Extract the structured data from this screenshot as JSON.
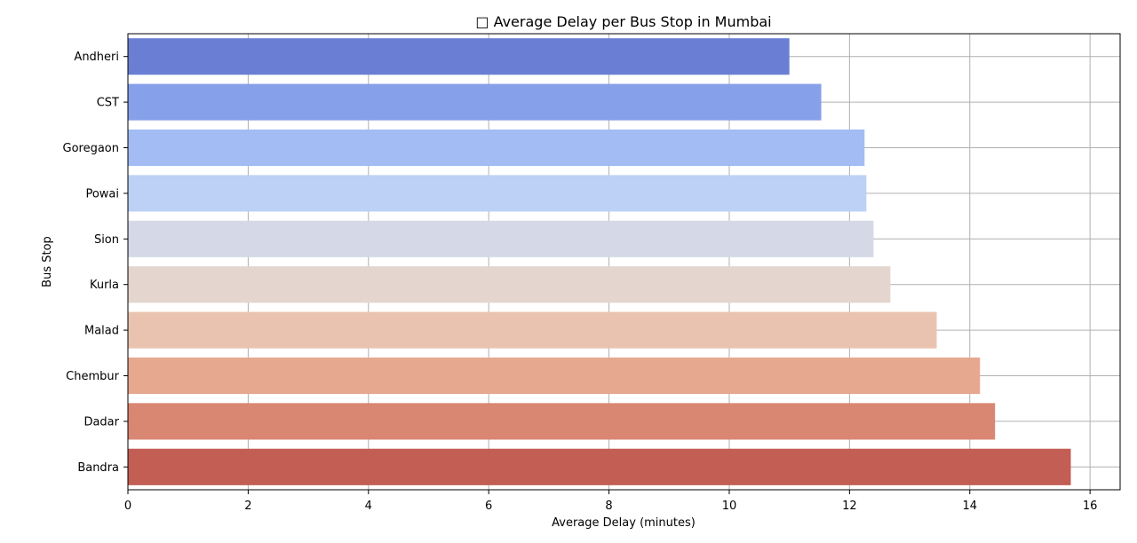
{
  "chart_data": {
    "type": "bar",
    "orientation": "horizontal",
    "title": "□ Average Delay per Bus Stop in Mumbai",
    "xlabel": "Average Delay (minutes)",
    "ylabel": "Bus Stop",
    "xlim": [
      0,
      16.5
    ],
    "xticks": [
      0,
      2,
      4,
      6,
      8,
      10,
      12,
      14,
      16
    ],
    "grid": true,
    "categories": [
      "Andheri",
      "CST",
      "Goregaon",
      "Powai",
      "Sion",
      "Kurla",
      "Malad",
      "Chembur",
      "Dadar",
      "Bandra"
    ],
    "values": [
      11.0,
      11.53,
      12.25,
      12.28,
      12.4,
      12.68,
      13.45,
      14.17,
      14.42,
      15.68
    ],
    "colors": [
      "#6a7fd4",
      "#86a0e9",
      "#a3bcf4",
      "#bdd0f5",
      "#d5d9e7",
      "#e4d6cf",
      "#eac3b0",
      "#e7a890",
      "#d98672",
      "#c25e53"
    ]
  }
}
